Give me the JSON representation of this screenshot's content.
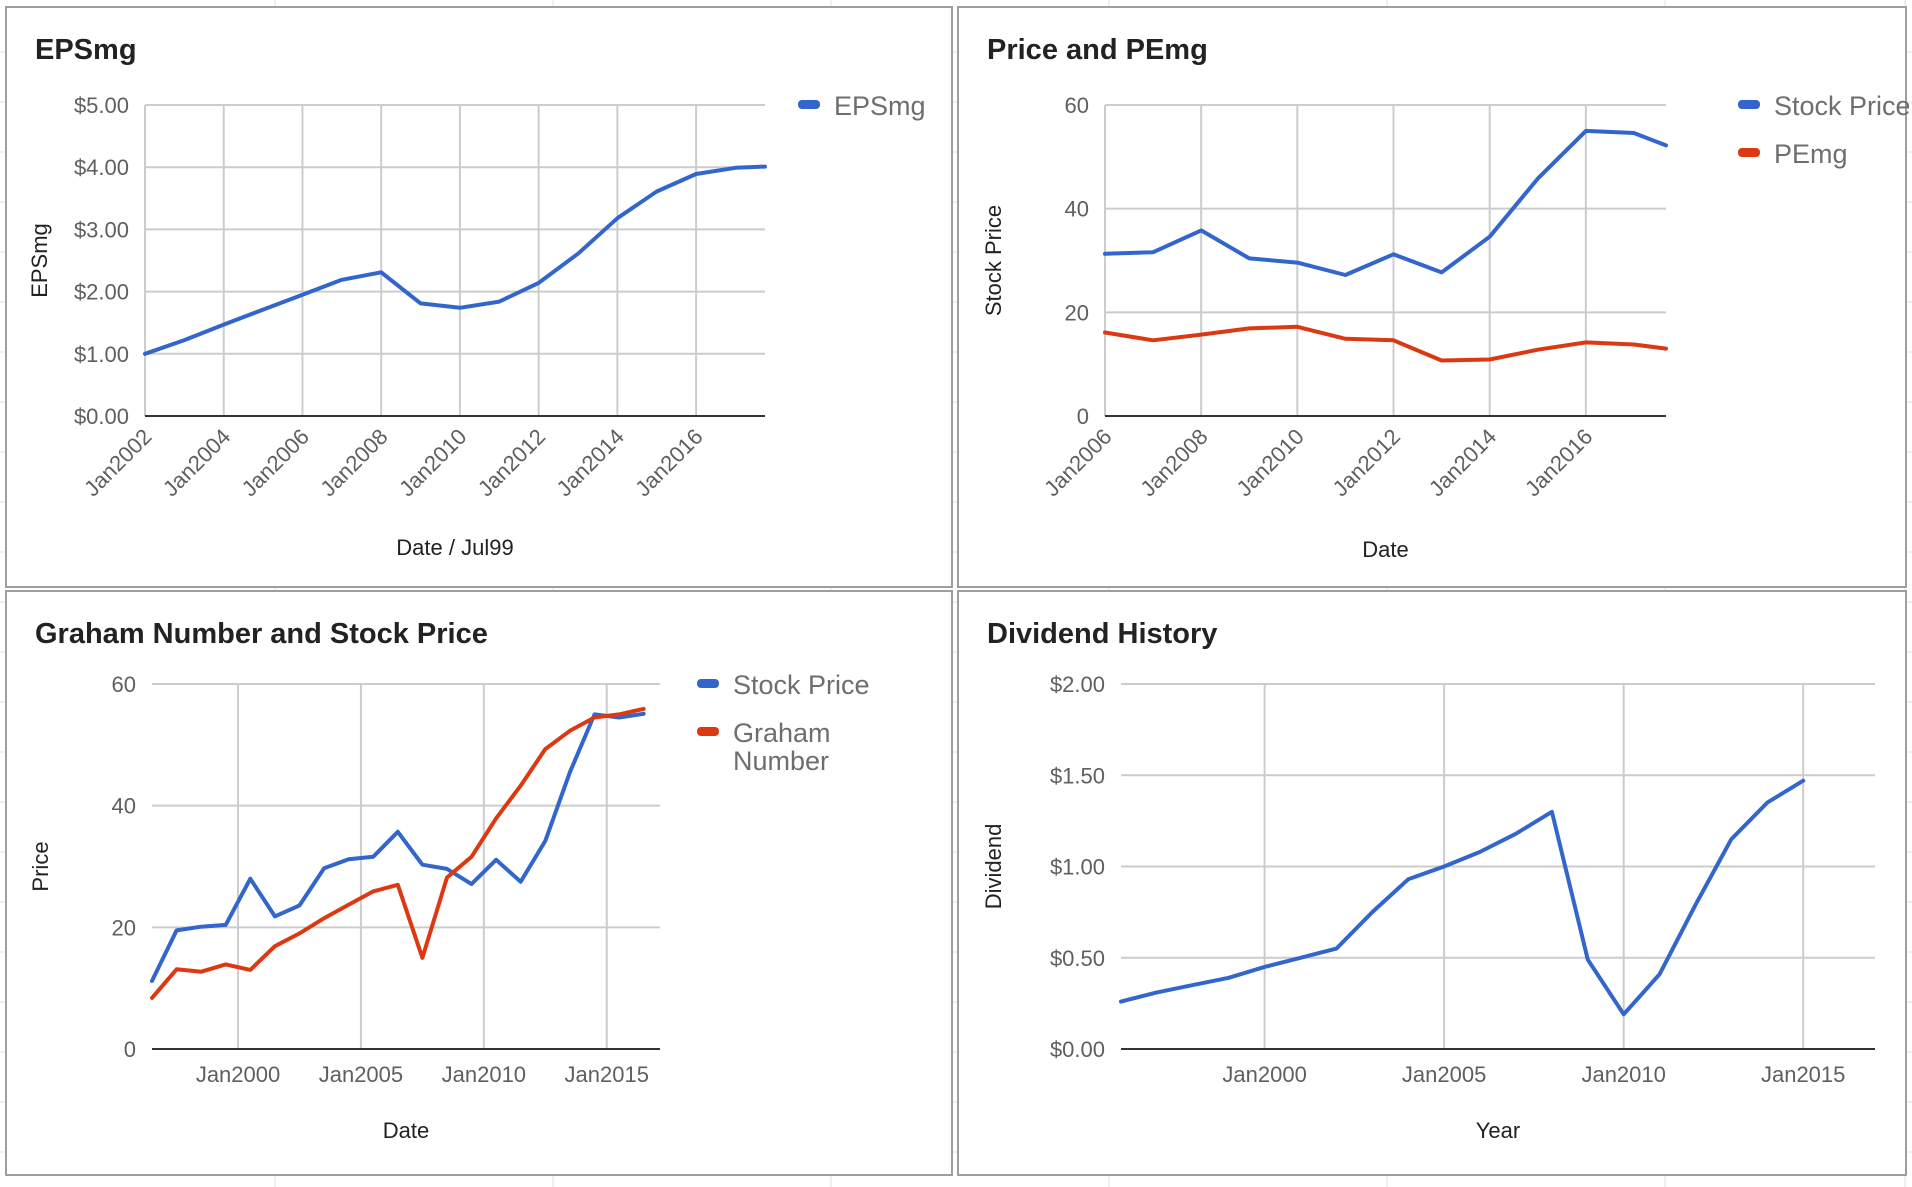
{
  "charts": [
    {
      "title": "EPSmg",
      "colors": {
        "EPSmg": "#3366cc"
      },
      "chart_data": {
        "type": "line",
        "title": "EPSmg",
        "xlabel": "Date / Jul99",
        "ylabel": "EPSmg",
        "x_ticks": [
          "Jan2002",
          "Jan2004",
          "Jan2006",
          "Jan2008",
          "Jan2010",
          "Jan2012",
          "Jan2014",
          "Jan2016"
        ],
        "y_ticks": [
          "$0.00",
          "$1.00",
          "$2.00",
          "$3.00",
          "$4.00",
          "$5.00"
        ],
        "xlim": [
          "2002-01",
          "2017-10"
        ],
        "ylim": [
          0,
          5
        ],
        "grid": true,
        "legend": "right",
        "series": [
          {
            "name": "EPSmg",
            "points": [
              [
                "2002-01",
                1.0
              ],
              [
                "2003-01",
                1.22
              ],
              [
                "2004-01",
                1.47
              ],
              [
                "2005-01",
                1.71
              ],
              [
                "2006-01",
                1.95
              ],
              [
                "2007-01",
                2.19
              ],
              [
                "2008-01",
                2.31
              ],
              [
                "2009-01",
                1.81
              ],
              [
                "2010-01",
                1.74
              ],
              [
                "2011-01",
                1.84
              ],
              [
                "2012-01",
                2.14
              ],
              [
                "2013-01",
                2.61
              ],
              [
                "2014-01",
                3.18
              ],
              [
                "2015-01",
                3.61
              ],
              [
                "2016-01",
                3.89
              ],
              [
                "2017-01",
                3.99
              ],
              [
                "2017-10",
                4.01
              ]
            ]
          }
        ]
      }
    },
    {
      "title": "Price and PEmg",
      "colors": {
        "Stock Price": "#3366cc",
        "PEmg": "#dc3912"
      },
      "chart_data": {
        "type": "line",
        "title": "Price and PEmg",
        "xlabel": "Date",
        "ylabel": "Stock Price",
        "x_ticks": [
          "Jan2006",
          "Jan2008",
          "Jan2010",
          "Jan2012",
          "Jan2014",
          "Jan2016"
        ],
        "y_ticks": [
          "0",
          "20",
          "40",
          "60"
        ],
        "xlim": [
          "2006-01",
          "2017-09"
        ],
        "ylim": [
          0,
          60
        ],
        "grid": true,
        "legend": "right",
        "series": [
          {
            "name": "Stock Price",
            "points": [
              [
                "2006-01",
                31.3
              ],
              [
                "2007-01",
                31.6
              ],
              [
                "2008-01",
                35.8
              ],
              [
                "2009-01",
                30.4
              ],
              [
                "2010-01",
                29.6
              ],
              [
                "2011-01",
                27.2
              ],
              [
                "2012-01",
                31.2
              ],
              [
                "2013-01",
                27.7
              ],
              [
                "2014-01",
                34.6
              ],
              [
                "2015-01",
                45.8
              ],
              [
                "2016-01",
                55.0
              ],
              [
                "2017-01",
                54.6
              ],
              [
                "2017-09",
                52.2
              ]
            ]
          },
          {
            "name": "PEmg",
            "points": [
              [
                "2006-01",
                16.1
              ],
              [
                "2007-01",
                14.6
              ],
              [
                "2008-01",
                15.7
              ],
              [
                "2009-01",
                16.9
              ],
              [
                "2010-01",
                17.2
              ],
              [
                "2011-01",
                14.9
              ],
              [
                "2012-01",
                14.6
              ],
              [
                "2013-01",
                10.7
              ],
              [
                "2014-01",
                10.9
              ],
              [
                "2015-01",
                12.8
              ],
              [
                "2016-01",
                14.2
              ],
              [
                "2017-01",
                13.8
              ],
              [
                "2017-09",
                13.0
              ]
            ]
          }
        ]
      }
    },
    {
      "title": "Graham Number and Stock Price",
      "colors": {
        "Stock Price": "#3366cc",
        "Graham Number": "#dc3912"
      },
      "chart_data": {
        "type": "line",
        "title": "Graham Number and Stock Price",
        "xlabel": "Date",
        "ylabel": "Price",
        "x_ticks": [
          "Jan2000",
          "Jan2005",
          "Jan2010",
          "Jan2015"
        ],
        "y_ticks": [
          "0",
          "20",
          "40",
          "60"
        ],
        "xlim": [
          "1996-07",
          "2017-03"
        ],
        "ylim": [
          0,
          60
        ],
        "grid": true,
        "legend": "right",
        "series": [
          {
            "name": "Stock Price",
            "points": [
              [
                "1996-07",
                11.2
              ],
              [
                "1997-07",
                19.5
              ],
              [
                "1998-07",
                20.1
              ],
              [
                "1999-07",
                20.4
              ],
              [
                "2000-07",
                28.0
              ],
              [
                "2001-07",
                21.8
              ],
              [
                "2002-07",
                23.6
              ],
              [
                "2003-07",
                29.7
              ],
              [
                "2004-07",
                31.2
              ],
              [
                "2005-07",
                31.6
              ],
              [
                "2006-07",
                35.7
              ],
              [
                "2007-07",
                30.3
              ],
              [
                "2008-07",
                29.6
              ],
              [
                "2009-07",
                27.1
              ],
              [
                "2010-07",
                31.1
              ],
              [
                "2011-07",
                27.5
              ],
              [
                "2012-07",
                34.2
              ],
              [
                "2013-07",
                45.5
              ],
              [
                "2014-07",
                55.0
              ],
              [
                "2015-07",
                54.5
              ],
              [
                "2016-07",
                55.1
              ]
            ]
          },
          {
            "name": "Graham Number",
            "points": [
              [
                "1996-07",
                8.4
              ],
              [
                "1997-07",
                13.1
              ],
              [
                "1998-07",
                12.7
              ],
              [
                "1999-07",
                13.9
              ],
              [
                "2000-07",
                13.0
              ],
              [
                "2001-07",
                16.9
              ],
              [
                "2002-07",
                19.0
              ],
              [
                "2003-07",
                21.5
              ],
              [
                "2004-07",
                23.7
              ],
              [
                "2005-07",
                25.9
              ],
              [
                "2006-07",
                27.0
              ],
              [
                "2007-07",
                15.0
              ],
              [
                "2008-07",
                28.2
              ],
              [
                "2009-07",
                31.6
              ],
              [
                "2010-07",
                37.9
              ],
              [
                "2011-07",
                43.3
              ],
              [
                "2012-07",
                49.3
              ],
              [
                "2013-07",
                52.3
              ],
              [
                "2014-07",
                54.5
              ],
              [
                "2015-07",
                55.0
              ],
              [
                "2016-07",
                55.9
              ]
            ]
          }
        ]
      }
    },
    {
      "title": "Dividend History",
      "colors": {
        "Dividend": "#3366cc"
      },
      "chart_data": {
        "type": "line",
        "title": "Dividend History",
        "xlabel": "Year",
        "ylabel": "Dividend",
        "x_ticks": [
          "Jan2000",
          "Jan2005",
          "Jan2010",
          "Jan2015"
        ],
        "y_ticks": [
          "$0.00",
          "$0.50",
          "$1.00",
          "$1.50",
          "$2.00"
        ],
        "xlim": [
          "1996-01",
          "2017-01"
        ],
        "ylim": [
          0,
          2
        ],
        "grid": true,
        "legend": "none",
        "series": [
          {
            "points": [
              [
                "1996-01",
                0.26
              ],
              [
                "1997-01",
                0.31
              ],
              [
                "1998-01",
                0.35
              ],
              [
                "1999-01",
                0.39
              ],
              [
                "2000-01",
                0.45
              ],
              [
                "2001-01",
                0.5
              ],
              [
                "2002-01",
                0.55
              ],
              [
                "2003-01",
                0.75
              ],
              [
                "2004-01",
                0.93
              ],
              [
                "2005-01",
                1.0
              ],
              [
                "2006-01",
                1.08
              ],
              [
                "2007-01",
                1.18
              ],
              [
                "2008-01",
                1.3
              ],
              [
                "2009-01",
                0.49
              ],
              [
                "2010-01",
                0.19
              ],
              [
                "2011-01",
                0.41
              ],
              [
                "2012-01",
                0.79
              ],
              [
                "2013-01",
                1.15
              ],
              [
                "2014-01",
                1.35
              ],
              [
                "2015-01",
                1.47
              ]
            ]
          }
        ]
      }
    }
  ]
}
